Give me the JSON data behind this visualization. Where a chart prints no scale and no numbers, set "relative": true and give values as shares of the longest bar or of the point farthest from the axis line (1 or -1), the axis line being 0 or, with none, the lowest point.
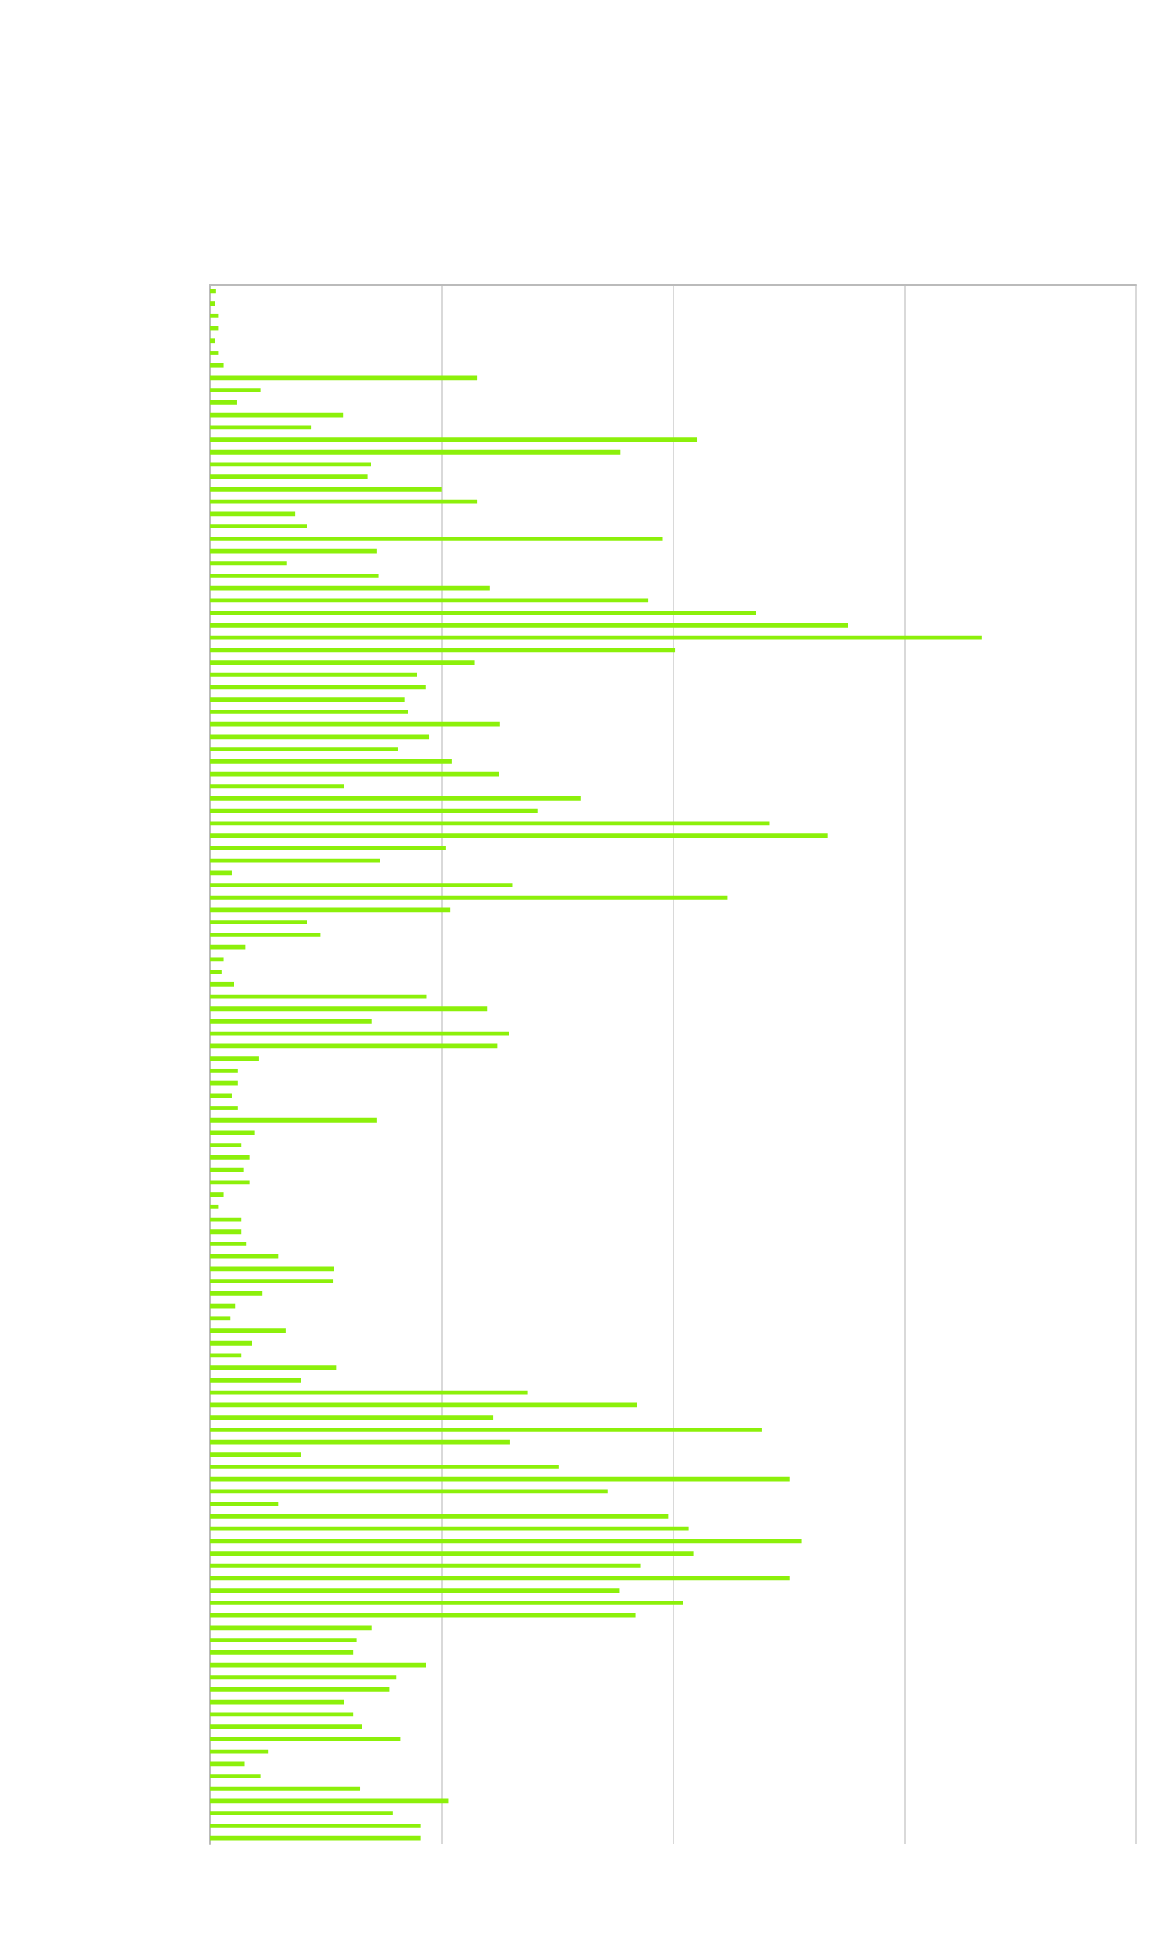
{
  "chart_data": {
    "type": "bar",
    "orientation": "horizontal",
    "relative": true,
    "grid": "x",
    "color": "#8cf00a",
    "categories": [
      null,
      null,
      null,
      null,
      null,
      null,
      null,
      null,
      null,
      null,
      null,
      null,
      null,
      null,
      null,
      null,
      null,
      null,
      null,
      null,
      null,
      null,
      null,
      null,
      null,
      null,
      null,
      null,
      null,
      null,
      null,
      null,
      null,
      null,
      null,
      null,
      null,
      null,
      null,
      null,
      null,
      null,
      null,
      null,
      null,
      null,
      null,
      null,
      null,
      null,
      null,
      null,
      null,
      null,
      null,
      null,
      null,
      null,
      null,
      null,
      null,
      null,
      null,
      null,
      null,
      null,
      null,
      null,
      null,
      null,
      null,
      null,
      null,
      null,
      null,
      null,
      null,
      null,
      null,
      null,
      null,
      null,
      null,
      null,
      null,
      null,
      null,
      null,
      null,
      null,
      null,
      null,
      null,
      null,
      null,
      null,
      null,
      null,
      null,
      null,
      null,
      null,
      null,
      null,
      null,
      null,
      null,
      null,
      null,
      null,
      null,
      null,
      null,
      null,
      null,
      null,
      null,
      null,
      null,
      null,
      null,
      null,
      null,
      null,
      null,
      null
    ],
    "values": [
      0.008,
      0.006,
      0.011,
      0.011,
      0.006,
      0.011,
      0.017,
      0.346,
      0.065,
      0.035,
      0.172,
      0.131,
      0.631,
      0.532,
      0.208,
      0.204,
      0.3,
      0.346,
      0.11,
      0.126,
      0.586,
      0.216,
      0.099,
      0.218,
      0.362,
      0.568,
      0.707,
      0.827,
      1,
      0.603,
      0.343,
      0.268,
      0.279,
      0.252,
      0.256,
      0.376,
      0.284,
      0.243,
      0.313,
      0.374,
      0.174,
      0.48,
      0.425,
      0.725,
      0.8,
      0.306,
      0.22,
      0.028,
      0.392,
      0.67,
      0.311,
      0.126,
      0.143,
      0.046,
      0.017,
      0.015,
      0.031,
      0.281,
      0.359,
      0.21,
      0.387,
      0.372,
      0.063,
      0.036,
      0.036,
      0.028,
      0.036,
      0.216,
      0.058,
      0.04,
      0.051,
      0.044,
      0.051,
      0.017,
      0.011,
      0.04,
      0.04,
      0.047,
      0.088,
      0.161,
      0.159,
      0.068,
      0.033,
      0.026,
      0.098,
      0.054,
      0.04,
      0.164,
      0.118,
      0.412,
      0.553,
      0.367,
      0.715,
      0.389,
      0.118,
      0.452,
      0.751,
      0.515,
      0.088,
      0.594,
      0.62,
      0.766,
      0.627,
      0.558,
      0.751,
      0.531,
      0.613,
      0.551,
      0.21,
      0.19,
      0.186,
      0.28,
      0.241,
      0.233,
      0.174,
      0.186,
      0.197,
      0.247,
      0.075,
      0.045,
      0.065,
      0.194,
      0.309,
      0.237,
      0.273,
      0.273
    ]
  }
}
